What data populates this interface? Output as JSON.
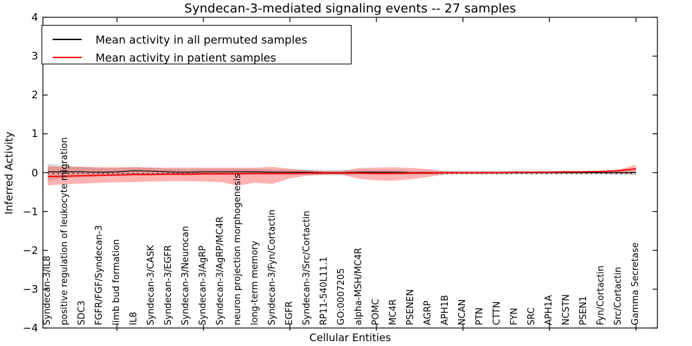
{
  "title": "Syndecan-3-mediated signaling events -- 27 samples",
  "axes": {
    "xlabel": "Cellular Entities",
    "ylabel": "Inferred Activity"
  },
  "legend": {
    "items": [
      {
        "label": "Mean activity in all permuted samples",
        "color": "#000000"
      },
      {
        "label": "Mean activity in patient samples",
        "color": "#ff0000"
      }
    ],
    "position": "upper left"
  },
  "chart_data": {
    "type": "line",
    "title": "Syndecan-3-mediated signaling events -- 27 samples",
    "xlabel": "Cellular Entities",
    "ylabel": "Inferred Activity",
    "ylim": [
      -4,
      4
    ],
    "yticks": [
      -4,
      -3,
      -2,
      -1,
      0,
      1,
      2,
      3,
      4
    ],
    "grid": false,
    "legend_position": "upper left",
    "categories": [
      "Syndecan-3/IL8",
      "positive regulation of leukocyte migration",
      "SDC3",
      "FGFR/FGF/Syndecan-3",
      "limb bud formation",
      "IL8",
      "Syndecan-3/CASK",
      "Syndecan-3/EGFR",
      "Syndecan-3/Neurocan",
      "Syndecan-3/AgRP",
      "Syndecan-3/AgRP/MC4R",
      "neuron projection morphogenesis",
      "long-term memory",
      "Syndecan-3/Fyn/Cortactin",
      "EGFR",
      "Syndecan-3/Src/Cortactin",
      "RP11-540L11.1",
      "GO:0007205",
      "alpha-MSH/MC4R",
      "POMC",
      "MC4R",
      "PSENEN",
      "AGRP",
      "APH1B",
      "NCAN",
      "PTN",
      "CTTN",
      "FYN",
      "SRC",
      "APH1A",
      "NCSTN",
      "PSEN1",
      "Fyn/Cortactin",
      "Src/Cortactin",
      "Gamma Secretase"
    ],
    "xtick_every": 5,
    "xtick_start_index": 4,
    "series": [
      {
        "name": "Mean activity in all permuted samples",
        "color": "#000000",
        "style": "solid",
        "width": 1.2,
        "values": [
          0.02,
          0.02,
          0.02,
          0.01,
          0.02,
          0.05,
          0.04,
          0.02,
          0.01,
          0.02,
          0.02,
          0.02,
          0.02,
          0.01,
          0.01,
          0.01,
          0.0,
          0.0,
          0.01,
          0.01,
          0.01,
          0.0,
          0.0,
          0.0,
          0.0,
          0.0,
          0.0,
          0.0,
          0.0,
          0.0,
          0.0,
          0.0,
          0.0,
          0.0,
          0.0
        ]
      },
      {
        "name": "Mean activity in patient samples",
        "color": "#ff0000",
        "style": "solid",
        "width": 1.8,
        "values": [
          -0.1,
          -0.09,
          -0.08,
          -0.07,
          -0.06,
          -0.05,
          -0.05,
          -0.04,
          -0.04,
          -0.03,
          -0.03,
          -0.03,
          -0.02,
          -0.02,
          -0.02,
          -0.01,
          -0.01,
          -0.01,
          -0.01,
          -0.02,
          -0.02,
          -0.01,
          -0.01,
          0.0,
          0.0,
          0.0,
          0.0,
          0.01,
          0.01,
          0.01,
          0.02,
          0.02,
          0.03,
          0.05,
          0.1
        ]
      }
    ],
    "bands": [
      {
        "name": "permuted-samples-std-band",
        "color": "#999999",
        "opacity": 0.38,
        "upper": [
          0.23,
          0.18,
          0.15,
          0.12,
          0.12,
          0.15,
          0.13,
          0.1,
          0.09,
          0.1,
          0.1,
          0.1,
          0.1,
          0.08,
          0.08,
          0.08,
          0.07,
          0.07,
          0.07,
          0.07,
          0.07,
          0.05,
          0.05,
          0.05,
          0.05,
          0.05,
          0.05,
          0.05,
          0.05,
          0.05,
          0.05,
          0.05,
          0.05,
          0.06,
          0.07
        ],
        "lower": [
          -0.19,
          -0.14,
          -0.11,
          -0.1,
          -0.08,
          -0.05,
          -0.05,
          -0.06,
          -0.07,
          -0.06,
          -0.06,
          -0.06,
          -0.06,
          -0.06,
          -0.06,
          -0.06,
          -0.07,
          -0.07,
          -0.05,
          -0.05,
          -0.05,
          -0.05,
          -0.05,
          -0.05,
          -0.05,
          -0.05,
          -0.05,
          -0.05,
          -0.05,
          -0.05,
          -0.05,
          -0.05,
          -0.05,
          -0.06,
          -0.07
        ]
      },
      {
        "name": "patient-samples-std-band",
        "color": "#ff0000",
        "opacity": 0.3,
        "upper": [
          0.16,
          0.15,
          0.15,
          0.14,
          0.14,
          0.14,
          0.13,
          0.13,
          0.13,
          0.13,
          0.13,
          0.13,
          0.13,
          0.15,
          0.1,
          0.06,
          0.04,
          0.04,
          0.12,
          0.13,
          0.14,
          0.12,
          0.09,
          0.03,
          0.02,
          0.02,
          0.02,
          0.02,
          0.02,
          0.03,
          0.03,
          0.04,
          0.05,
          0.08,
          0.2
        ],
        "lower": [
          -0.33,
          -0.3,
          -0.28,
          -0.26,
          -0.25,
          -0.24,
          -0.23,
          -0.22,
          -0.22,
          -0.23,
          -0.24,
          -0.33,
          -0.26,
          -0.29,
          -0.15,
          -0.08,
          -0.05,
          -0.05,
          -0.16,
          -0.2,
          -0.21,
          -0.17,
          -0.11,
          -0.04,
          -0.03,
          -0.03,
          -0.03,
          -0.02,
          -0.02,
          -0.02,
          -0.01,
          -0.01,
          -0.01,
          -0.02,
          -0.01
        ]
      }
    ],
    "reference_line": {
      "value": -0.02,
      "style": "dotted",
      "color": "#000000"
    }
  }
}
